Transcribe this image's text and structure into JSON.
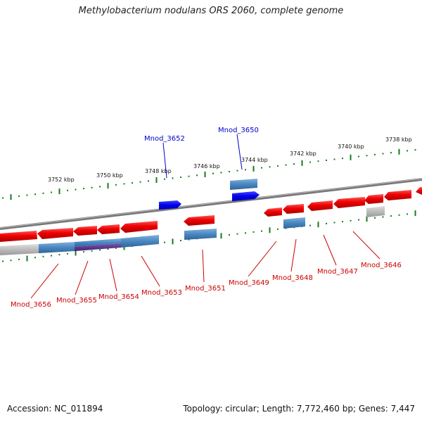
{
  "title": "Methylobacterium nodulans ORS 2060, complete genome",
  "accession": "Accession: NC_011894",
  "summary": {
    "topology": "Topology: circular;",
    "length": "Length: 7,772,460 bp;",
    "genes": "Genes: 7,447"
  },
  "scale": {
    "ticks": [
      {
        "kbp": 3752,
        "label": "3752 kbp"
      },
      {
        "kbp": 3750,
        "label": "3750 kbp"
      },
      {
        "kbp": 3748,
        "label": "3748 kbp"
      },
      {
        "kbp": 3746,
        "label": "3746 kbp"
      },
      {
        "kbp": 3744,
        "label": "3744 kbp"
      },
      {
        "kbp": 3742,
        "label": "3742 kbp"
      },
      {
        "kbp": 3740,
        "label": "3740 kbp"
      },
      {
        "kbp": 3738,
        "label": "3738 kbp"
      }
    ]
  },
  "genes": {
    "forward_labeled": [
      "Mnod_3652",
      "Mnod_3650"
    ],
    "reverse_labeled": [
      "Mnod_3656",
      "Mnod_3655",
      "Mnod_3654",
      "Mnod_3653",
      "Mnod_3651",
      "Mnod_3649",
      "Mnod_3648",
      "Mnod_3647",
      "Mnod_3646"
    ]
  },
  "colors": {
    "forward_gene": "#0000ee",
    "reverse_gene": "#ee0000",
    "cds_feature": "#4a86c0",
    "pseudo_feature": "#bbbbbb",
    "overlap_feature": "#553388",
    "tick_mark": "#1a7a1a",
    "backbone": "#888888"
  }
}
